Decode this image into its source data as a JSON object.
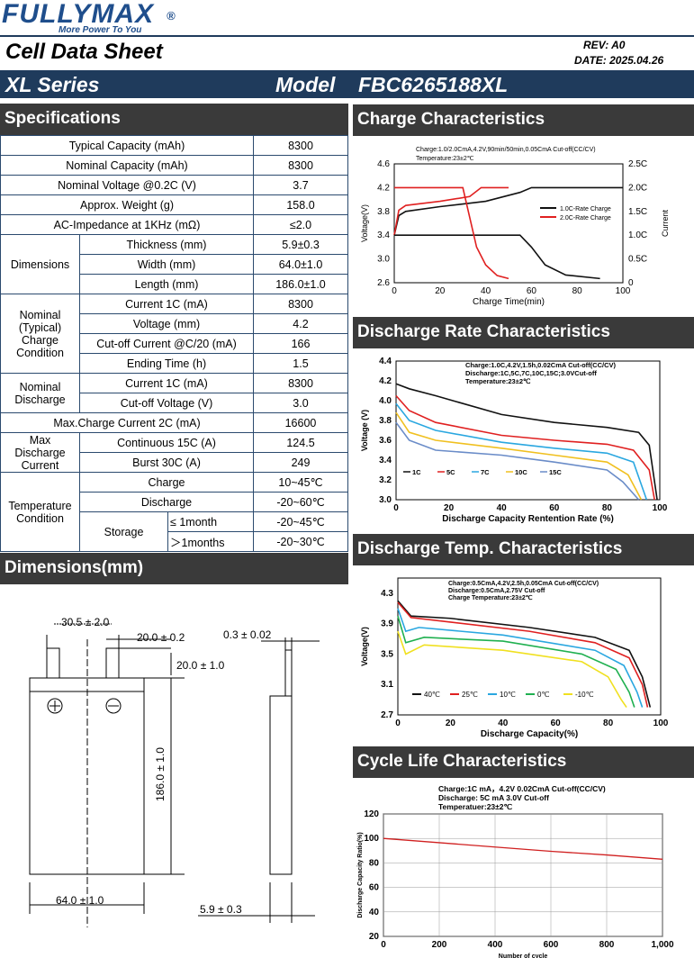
{
  "brand": {
    "logo": "FULLYMAX",
    "reg": "®",
    "tagline": "More Power To You"
  },
  "header": {
    "title": "Cell Data Sheet",
    "rev": "REV:  A0",
    "date": "DATE:  2025.04.26",
    "series": "XL Series",
    "model_label": "Model",
    "model": "FBC6265188XL"
  },
  "sections": {
    "spec": "Specifications",
    "dims": "Dimensions(mm)",
    "charge": "Charge Characteristics",
    "discharge_rate": "Discharge Rate Characteristics",
    "discharge_temp": "Discharge Temp. Characteristics",
    "cycle": "Cycle Life Characteristics"
  },
  "spec": {
    "typical_capacity": {
      "label": "Typical Capacity (mAh)",
      "value": "8300"
    },
    "nominal_capacity": {
      "label": "Nominal Capacity (mAh)",
      "value": "8300"
    },
    "nominal_voltage": {
      "label": "Nominal Voltage @0.2C (V)",
      "value": "3.7"
    },
    "weight": {
      "label": "Approx. Weight (g)",
      "value": "158.0"
    },
    "impedance": {
      "label": "AC-Impedance at 1KHz (mΩ)",
      "value": "≤2.0"
    },
    "dimensions": {
      "group": "Dimensions",
      "thickness": {
        "label": "Thickness (mm)",
        "value": "5.9±0.3"
      },
      "width": {
        "label": "Width (mm)",
        "value": "64.0±1.0"
      },
      "length": {
        "label": "Length (mm)",
        "value": "186.0±1.0"
      }
    },
    "charge": {
      "group": "Nominal (Typical) Charge Condition",
      "current": {
        "label": "Current  1C (mA)",
        "value": "8300"
      },
      "voltage": {
        "label": "Voltage (mm)",
        "value": "4.2"
      },
      "cutoff": {
        "label": "Cut-off Current @C/20 (mA)",
        "value": "166"
      },
      "time": {
        "label": "Ending Time (h)",
        "value": "1.5"
      }
    },
    "discharge": {
      "group": "Nominal Discharge",
      "current": {
        "label": "Current 1C (mA)",
        "value": "8300"
      },
      "cutoff": {
        "label": "Cut-off Voltage (V)",
        "value": "3.0"
      }
    },
    "max_charge": {
      "label": "Max.Charge Current 2C (mA)",
      "value": "16600"
    },
    "max_discharge": {
      "group": "Max Discharge Current",
      "continuous": {
        "label": "Continuous 15C (A)",
        "value": "124.5"
      },
      "burst": {
        "label": "Burst 30C  (A)",
        "value": "249"
      }
    },
    "temperature": {
      "group": "Temperature Condition",
      "charge": {
        "label": "Charge",
        "value": "10~45℃"
      },
      "discharge": {
        "label": "Discharge",
        "value": "-20~60℃"
      },
      "storage": {
        "label": "Storage",
        "m1": {
          "label": "≤ 1month",
          "value": "-20~45℃"
        },
        "m2": {
          "label": "＞1months",
          "value": "-20~30℃"
        }
      }
    }
  },
  "dims": {
    "d1": "30.5 ± 2.0",
    "d2": "20.0 ± 0.2",
    "d3": "20.0 ± 1.0",
    "d4": "186.0 ± 1.0",
    "d5": "64.0 ± 1.0",
    "d6": "0.3 ± 0.02",
    "d7": "5.9 ± 0.3"
  },
  "chart_data": [
    {
      "type": "line",
      "title": "Charge Characteristics",
      "note": "Charge:1.0/2.0CmA,4.2V,90min/50min,0.05CmA Cut-off(CC/CV)",
      "note2": "Temperature:23±2℃",
      "xlabel": "Charge Time(min)",
      "ylabel": "Voltage(V)",
      "y2label": "Current",
      "x_ticks": [
        "0",
        "20",
        "40",
        "60",
        "80",
        "100"
      ],
      "y_ticks": [
        "2.6",
        "3.0",
        "3.4",
        "3.8",
        "4.2",
        "4.6"
      ],
      "y2_ticks": [
        "0",
        "0.5C",
        "1.0C",
        "1.5C",
        "2.0C",
        "2.5C"
      ],
      "xlim": [
        0,
        100
      ],
      "ylim": [
        2.6,
        4.6
      ],
      "series": [
        {
          "name": "1.0C-Rate Charge",
          "color": "#111111"
        },
        {
          "name": "2.0C-Rate Charge",
          "color": "#e02020"
        }
      ]
    },
    {
      "type": "line",
      "title": "Discharge Rate Characteristics",
      "note": "Charge:1.0C,4.2V,1.5h,0.02CmA Cut-off(CC/CV)",
      "note2": "Discharge:1C,5C,7C,10C,15C;3.0VCut-off",
      "note3": "Temperature:23±2℃",
      "xlabel": "Discharge Capacity Rentention Rate  (%)",
      "ylabel": "Voltage  (V)",
      "x_ticks": [
        "0",
        "20",
        "40",
        "60",
        "80",
        "100"
      ],
      "y_ticks": [
        "3.0",
        "3.2",
        "3.4",
        "3.6",
        "3.8",
        "4.0",
        "4.2",
        "4.4"
      ],
      "xlim": [
        0,
        100
      ],
      "ylim": [
        3.0,
        4.4
      ],
      "series": [
        {
          "name": "1C",
          "color": "#111111"
        },
        {
          "name": "5C",
          "color": "#e02020"
        },
        {
          "name": "7C",
          "color": "#2aa7e0"
        },
        {
          "name": "10C",
          "color": "#f0c020"
        },
        {
          "name": "15C",
          "color": "#6a8cc8"
        }
      ]
    },
    {
      "type": "line",
      "title": "Discharge Temp. Characteristics",
      "note": "Charge:0.5CmA,4.2V,2.5h,0.05CmA Cut-off(CC/CV)",
      "note2": "Discharge:0.5CmA,2.75V Cut-off",
      "note3": "Charge Temperature:23±2℃",
      "xlabel": "Discharge Capacity(%)",
      "ylabel": "Voltage(V)",
      "x_ticks": [
        "0",
        "20",
        "40",
        "60",
        "80",
        "100"
      ],
      "y_ticks": [
        "2.7",
        "3.1",
        "3.5",
        "3.9",
        "4.3"
      ],
      "xlim": [
        0,
        100
      ],
      "ylim": [
        2.7,
        4.5
      ],
      "series": [
        {
          "name": "40℃",
          "color": "#111111"
        },
        {
          "name": "25℃",
          "color": "#e02020"
        },
        {
          "name": "10℃",
          "color": "#2aa7e0"
        },
        {
          "name": "0℃",
          "color": "#20b050"
        },
        {
          "name": "-10℃",
          "color": "#f0e020"
        }
      ]
    },
    {
      "type": "line",
      "title": "Cycle Life Characteristics",
      "note": "Charge:1C mA，4.2V 0.02CmA  Cut-off(CC/CV)",
      "note2": "Discharge: 5C mA  3.0V Cut-off",
      "note3": "Temperatuer:23±2℃",
      "xlabel": "Number of cycle",
      "ylabel": "Discharge  Capacity Ratio(%)",
      "x_ticks": [
        "0",
        "200",
        "400",
        "600",
        "800",
        "1,000"
      ],
      "y_ticks": [
        "20",
        "40",
        "60",
        "80",
        "100",
        "120"
      ],
      "xlim": [
        0,
        1000
      ],
      "ylim": [
        20,
        120
      ],
      "series": [
        {
          "x": [
            0,
            200,
            400,
            600,
            800,
            1000
          ],
          "values": [
            100,
            96.5,
            93,
            89.5,
            86.5,
            83
          ],
          "color": "#d02020"
        }
      ]
    }
  ]
}
